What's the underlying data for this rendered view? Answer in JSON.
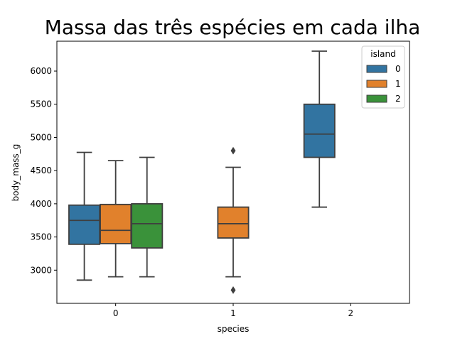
{
  "chart_data": {
    "type": "boxplot",
    "title": "Massa das três espécies em cada ilha",
    "xlabel": "species",
    "ylabel": "body_mass_g",
    "categories": [
      "0",
      "1",
      "2"
    ],
    "ylim": [
      2500,
      6450
    ],
    "yticks": [
      3000,
      3500,
      4000,
      4500,
      5000,
      5500,
      6000
    ],
    "legend": {
      "title": "island",
      "position": "top-right"
    },
    "series": [
      {
        "name": "0",
        "color": "#3274a1",
        "boxes": [
          {
            "category": "0",
            "whisker_low": 2850,
            "q1": 3390,
            "median": 3750,
            "q3": 3980,
            "whisker_high": 4775,
            "outliers": []
          },
          {
            "category": "2",
            "whisker_low": 3950,
            "q1": 4700,
            "median": 5050,
            "q3": 5500,
            "whisker_high": 6300,
            "outliers": []
          }
        ]
      },
      {
        "name": "1",
        "color": "#e1812c",
        "boxes": [
          {
            "category": "0",
            "whisker_low": 2900,
            "q1": 3400,
            "median": 3600,
            "q3": 3990,
            "whisker_high": 4650,
            "outliers": []
          },
          {
            "category": "1",
            "whisker_low": 2900,
            "q1": 3485,
            "median": 3700,
            "q3": 3950,
            "whisker_high": 4550,
            "outliers": [
              2700,
              4800
            ]
          }
        ]
      },
      {
        "name": "2",
        "color": "#3a923a",
        "boxes": [
          {
            "category": "0",
            "whisker_low": 2900,
            "q1": 3335,
            "median": 3700,
            "q3": 4000,
            "whisker_high": 4700,
            "outliers": []
          }
        ]
      }
    ]
  }
}
